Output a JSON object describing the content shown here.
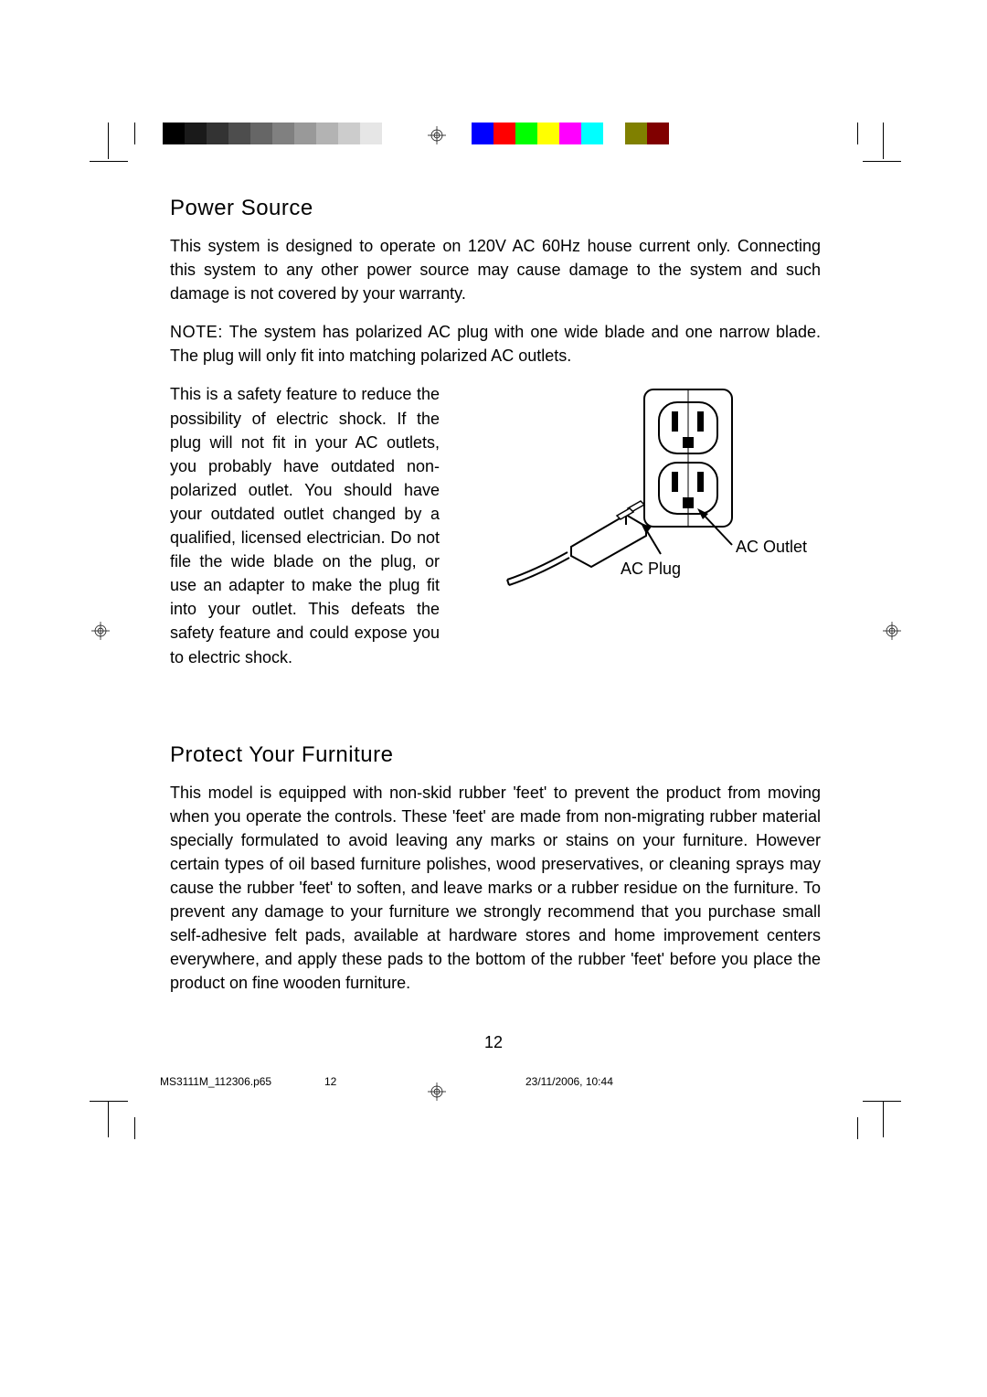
{
  "colorbar": {
    "grayscale": [
      "#000000",
      "#1a1a1a",
      "#333333",
      "#4d4d4d",
      "#666666",
      "#808080",
      "#999999",
      "#b3b3b3",
      "#cccccc",
      "#e6e6e6",
      "#ffffff"
    ],
    "colors": [
      "#0000ff",
      "#ff0000",
      "#00ff00",
      "#ffff00",
      "#ff00ff",
      "#00ffff",
      "#ffffff",
      "#808000",
      "#800000"
    ]
  },
  "section1": {
    "heading": "Power Source",
    "p1": "This system is designed to operate on 120V AC 60Hz house current only. Connecting this system to any other power source may cause damage to the system and such damage is not covered by your warranty.",
    "note_prefix": "NOTE:",
    "p2_rest": " The system has polarized AC plug with one wide blade and one narrow blade. The plug will only fit into matching polarized AC outlets.",
    "p3": "This is a safety feature to reduce the possibility of electric shock. If the plug will not fit in your AC outlets, you probably have outdated non-polarized outlet. You should have your outdated outlet changed by a qualified, licensed electrician. Do not file the wide blade on the plug, or use an adapter to make the plug fit into your outlet. This defeats the safety feature and could expose you to electric shock."
  },
  "diagram": {
    "outlet_label": "AC Outlet",
    "plug_label": "AC Plug"
  },
  "section2": {
    "heading": "Protect Your Furniture",
    "p1": "This model is equipped with non-skid rubber 'feet' to prevent the product from moving when you operate the controls. These 'feet' are made from non-migrating rubber material specially formulated to avoid leaving any marks or stains on your furniture. However certain types of oil based furniture polishes, wood preservatives, or cleaning sprays may cause the rubber 'feet' to soften, and leave marks or a rubber residue on the furniture. To prevent any damage to your furniture we strongly recommend that you purchase small self-adhesive felt pads, available at hardware stores and home improvement centers everywhere, and apply these pads to the bottom of the rubber 'feet' before you place the product on fine wooden furniture."
  },
  "page_number": "12",
  "footer": {
    "file": "MS3111M_112306.p65",
    "page": "12",
    "date": "23/11/2006, 10:44"
  }
}
